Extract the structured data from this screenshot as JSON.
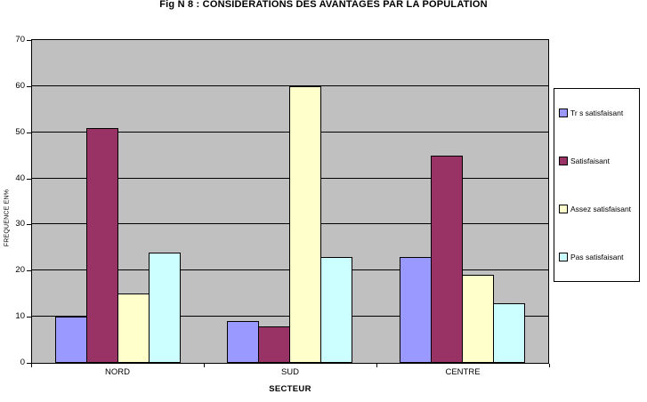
{
  "chart_data": {
    "type": "bar",
    "title": "Fig N 8 : CONSIDERATIONS DES AVANTAGES PAR LA POPULATION",
    "categories": [
      "NORD",
      "SUD",
      "CENTRE"
    ],
    "series": [
      {
        "name": "Tr s satisfaisant",
        "color": "#9999FF",
        "values": [
          10,
          9,
          23
        ]
      },
      {
        "name": "Satisfaisant",
        "color": "#993366",
        "values": [
          51,
          8,
          45
        ]
      },
      {
        "name": "Assez satisfaisant",
        "color": "#FFFFCC",
        "values": [
          15,
          60,
          19
        ]
      },
      {
        "name": "Pas satisfaisant",
        "color": "#CCFFFF",
        "values": [
          24,
          23,
          13
        ]
      }
    ],
    "xlabel": "SECTEUR",
    "ylabel": "FREQUENCE EN%",
    "ylim": [
      0,
      70
    ],
    "yticks": [
      0,
      10,
      20,
      30,
      40,
      50,
      60,
      70
    ],
    "grid": true,
    "legend_position": "right",
    "plot_bg_color": "#C0C0C0",
    "gridline_color": "#000000",
    "bar_border_color": "#000000"
  }
}
